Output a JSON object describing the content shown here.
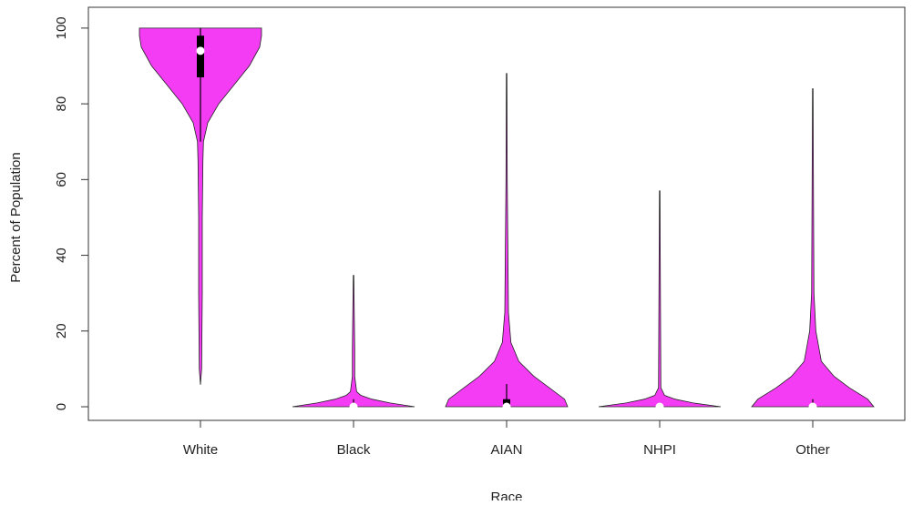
{
  "chart_data": {
    "type": "violin",
    "x_label": "Race",
    "y_label": "Percent of Population",
    "categories": [
      "White",
      "Black",
      "AIAN",
      "NHPI",
      "Other"
    ],
    "color": "#f53cf5",
    "ylim": [
      -3.6,
      105.5
    ],
    "yticks": [
      0,
      20,
      40,
      60,
      80,
      100
    ],
    "violins": [
      {
        "density_y": [
          5.8,
          10,
          30,
          50,
          65,
          70,
          75,
          80,
          85,
          90,
          95,
          98,
          100
        ],
        "density": [
          0,
          0.02,
          0.03,
          0.03,
          0.04,
          0.05,
          0.12,
          0.3,
          0.55,
          0.8,
          0.97,
          1.0,
          1.0
        ],
        "whisker": [
          70,
          100
        ],
        "box": [
          87,
          98
        ],
        "median": 94
      },
      {
        "density_y": [
          0,
          1,
          2,
          3,
          4,
          8,
          15,
          34.7
        ],
        "density": [
          1.0,
          0.6,
          0.3,
          0.12,
          0.05,
          0.02,
          0.02,
          0.005
        ],
        "whisker": [
          0,
          2
        ],
        "box": [
          0,
          0.3
        ],
        "median": 0
      },
      {
        "density_y": [
          0,
          2,
          5,
          8,
          12,
          17,
          25,
          60,
          88
        ],
        "density": [
          1.0,
          0.95,
          0.7,
          0.45,
          0.2,
          0.07,
          0.03,
          0.01,
          0.005
        ],
        "whisker": [
          0,
          6
        ],
        "box": [
          0,
          2
        ],
        "median": 0
      },
      {
        "density_y": [
          0,
          1,
          2,
          3,
          5,
          57
        ],
        "density": [
          1.0,
          0.55,
          0.25,
          0.08,
          0.02,
          0.005
        ],
        "whisker": [
          0,
          1
        ],
        "box": [
          0,
          0.2
        ],
        "median": 0
      },
      {
        "density_y": [
          0,
          2,
          5,
          8,
          12,
          20,
          30,
          60,
          84
        ],
        "density": [
          1.0,
          0.9,
          0.6,
          0.35,
          0.14,
          0.05,
          0.02,
          0.01,
          0.005
        ],
        "whisker": [
          0,
          2
        ],
        "box": [
          0,
          0.3
        ],
        "median": 0
      }
    ]
  }
}
